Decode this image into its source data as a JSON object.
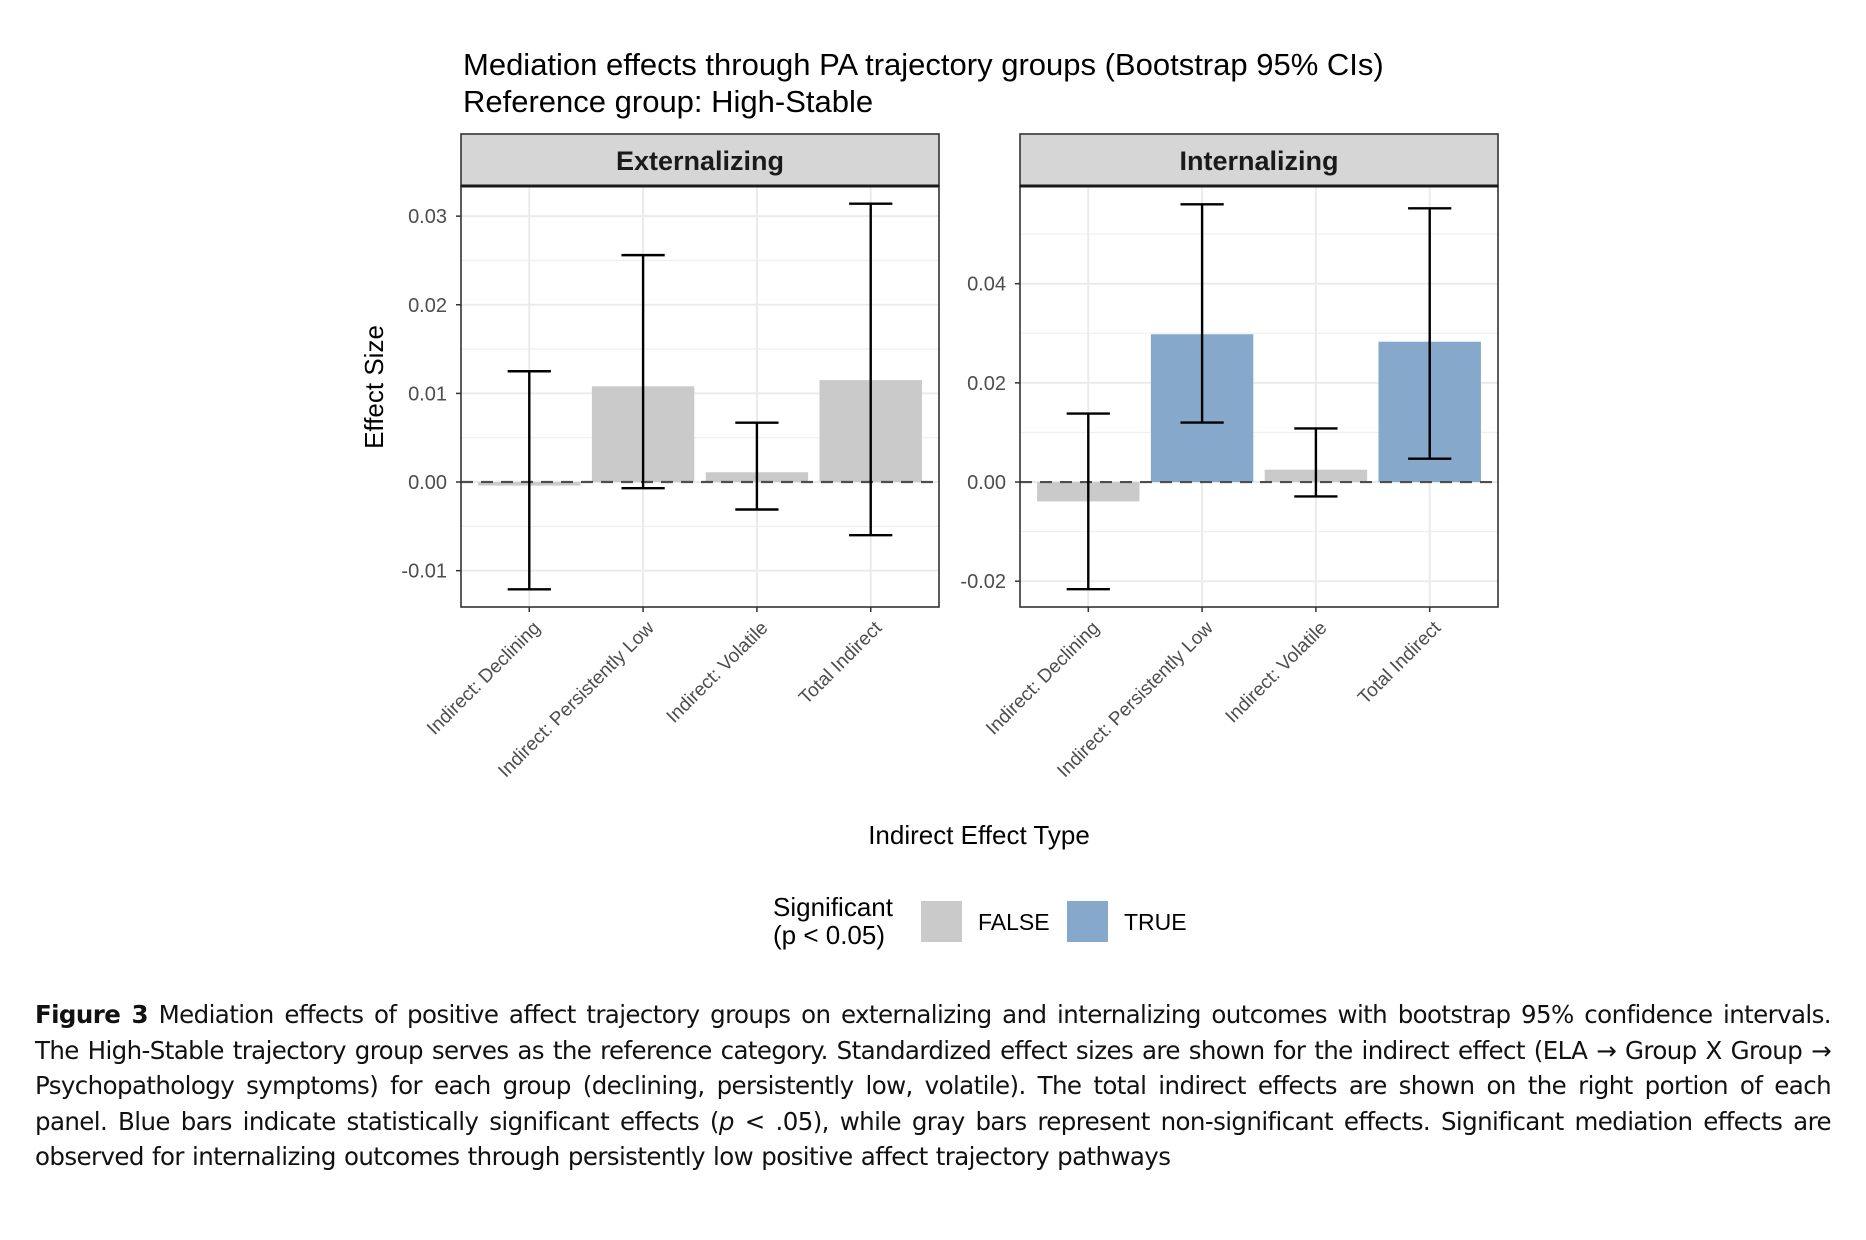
{
  "caption": {
    "label": "Figure 3",
    "text_parts": [
      " Mediation effects of positive affect trajectory groups on externalizing and internalizing outcomes with bootstrap 95% confidence intervals. The High-Stable trajectory group serves as the reference category. Standardized effect sizes are shown for the indirect effect (ELA → Group X Group → Psychopathology symptoms) for each group (declining, persistently low, volatile). The total indirect effects are shown on the right portion of each panel. Blue bars indicate statistically significant effects (",
      "p",
      " < .05), while gray bars represent non-significant effects. Significant mediation effects are observed for internalizing outcomes through persistently low positive affect trajectory pathways"
    ]
  },
  "chart_data": {
    "type": "bar",
    "title": "Mediation effects through PA trajectory groups (Bootstrap 95% CIs)",
    "subtitle": "Reference group: High-Stable",
    "xlabel": "Indirect Effect Type",
    "ylabel": "Effect Size",
    "categories": [
      "Indirect: Declining",
      "Indirect: Persistently Low",
      "Indirect: Volatile",
      "Total Indirect"
    ],
    "grid": true,
    "reference_line": {
      "y": 0,
      "style": "dashed"
    },
    "legend": {
      "title_lines": [
        "Significant",
        "(p < 0.05)"
      ],
      "placement": "bottom",
      "entries": [
        {
          "label": "FALSE",
          "color": "#cacaca"
        },
        {
          "label": "TRUE",
          "color": "#86a8cb"
        }
      ]
    },
    "panels": [
      {
        "name": "Externalizing",
        "ylim": [
          -0.0141,
          0.0334
        ],
        "yticks": [
          -0.01,
          0.0,
          0.01,
          0.02,
          0.03
        ],
        "ytick_labels": [
          "-0.01",
          "0.00",
          "0.01",
          "0.02",
          "0.03"
        ],
        "values": [
          -0.0004,
          0.0108,
          0.0011,
          0.0115
        ],
        "ci_lower": [
          -0.0121,
          -0.0007,
          -0.0031,
          -0.006
        ],
        "ci_upper": [
          0.0125,
          0.0256,
          0.0067,
          0.0314
        ],
        "significant": [
          false,
          false,
          false,
          false
        ]
      },
      {
        "name": "Internalizing",
        "ylim": [
          -0.0252,
          0.0597
        ],
        "yticks": [
          -0.02,
          0.0,
          0.02,
          0.04
        ],
        "ytick_labels": [
          "-0.02",
          "0.00",
          "0.02",
          "0.04"
        ],
        "values": [
          -0.0039,
          0.0298,
          0.0025,
          0.0283
        ],
        "ci_lower": [
          -0.0216,
          0.012,
          -0.0029,
          0.0047
        ],
        "ci_upper": [
          0.0138,
          0.056,
          0.0108,
          0.0552
        ],
        "significant": [
          false,
          true,
          false,
          true
        ]
      }
    ]
  }
}
